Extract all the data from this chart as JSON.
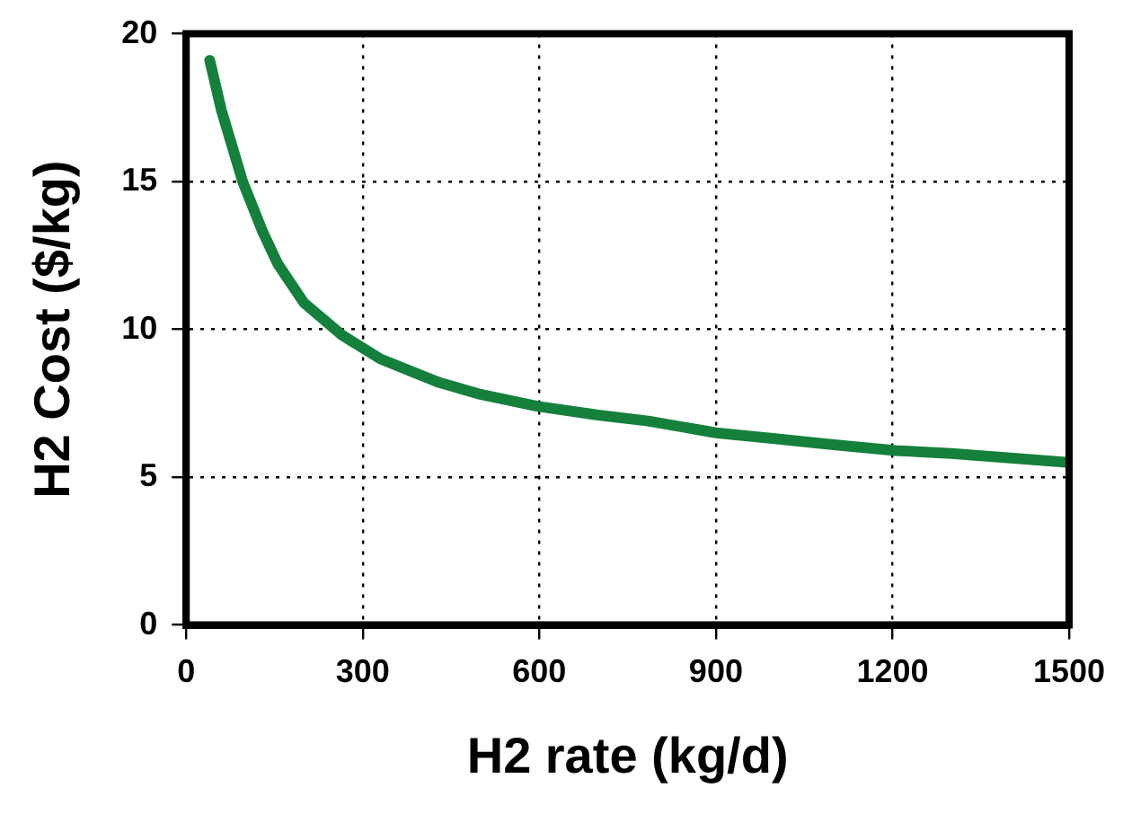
{
  "chart_data": {
    "type": "line",
    "xlabel": "H2 rate (kg/d)",
    "ylabel": "H2 Cost ($/kg)",
    "x": [
      40,
      60,
      96,
      130,
      156,
      200,
      265,
      330,
      430,
      500,
      596,
      700,
      785,
      900,
      1000,
      1100,
      1205,
      1300,
      1400,
      1500
    ],
    "series": [
      {
        "color": "#14803c",
        "values": [
          19.1,
          17.4,
          15.0,
          13.3,
          12.2,
          10.9,
          9.8,
          9.0,
          8.2,
          7.8,
          7.4,
          7.1,
          6.9,
          6.5,
          6.3,
          6.1,
          5.9,
          5.8,
          5.65,
          5.5
        ]
      }
    ],
    "xlim": [
      0,
      1500
    ],
    "xticks": [
      0,
      300,
      600,
      900,
      1200,
      1500
    ],
    "ylim": [
      0,
      20
    ],
    "yticks": [
      0,
      5,
      10,
      15,
      20
    ],
    "grid": true,
    "marker": "none",
    "line_style": "solid",
    "legend": false
  }
}
